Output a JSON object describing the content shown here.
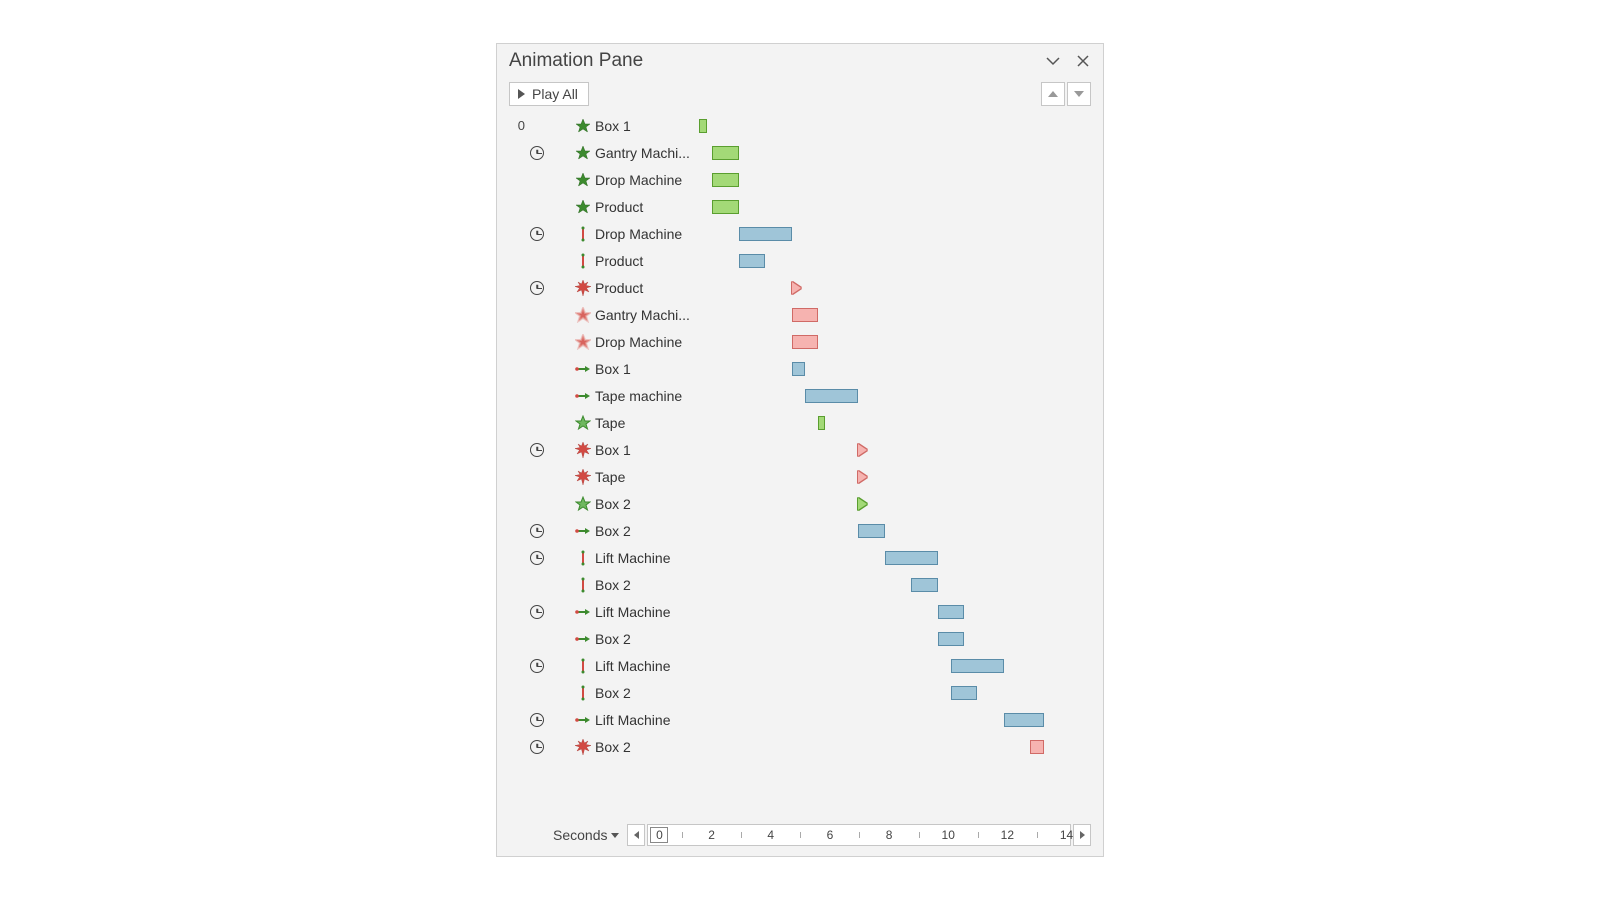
{
  "title": "Animation Pane",
  "playLabel": "Play All",
  "secondsLabel": "Seconds",
  "timeline": {
    "pxPerSecond": 26.5,
    "colors": {
      "green_fill": "#a3d977",
      "green_border": "#5a9e2f",
      "blue_fill": "#9fc5d8",
      "blue_border": "#5a8ca8",
      "red_fill": "#f6b3b0",
      "red_border": "#d06a66"
    },
    "ruler": {
      "start": 0,
      "end": 14,
      "majorStep": 2
    }
  },
  "rows": [
    {
      "num": "0",
      "trigger": "none",
      "indent": 0,
      "icon": "star-green",
      "label": "Box 1",
      "shape": "bar",
      "color": "green",
      "start": 0.0,
      "dur": 0.3
    },
    {
      "num": "",
      "trigger": "clock",
      "indent": 0,
      "icon": "star-green",
      "label": "Gantry Machi...",
      "shape": "bar",
      "color": "green",
      "start": 0.5,
      "dur": 1.0
    },
    {
      "num": "",
      "trigger": "none",
      "indent": 0,
      "icon": "star-green",
      "label": "Drop Machine",
      "shape": "bar",
      "color": "green",
      "start": 0.5,
      "dur": 1.0
    },
    {
      "num": "",
      "trigger": "none",
      "indent": 0,
      "icon": "star-green",
      "label": "Product",
      "shape": "bar",
      "color": "green",
      "start": 0.5,
      "dur": 1.0
    },
    {
      "num": "",
      "trigger": "clock",
      "indent": 0,
      "icon": "line-red",
      "label": "Drop Machine",
      "shape": "bar",
      "color": "blue",
      "start": 1.5,
      "dur": 2.0
    },
    {
      "num": "",
      "trigger": "none",
      "indent": 0,
      "icon": "line-red",
      "label": "Product",
      "shape": "bar",
      "color": "blue",
      "start": 1.5,
      "dur": 1.0
    },
    {
      "num": "",
      "trigger": "clock",
      "indent": 0,
      "icon": "burst-red",
      "label": "Product",
      "shape": "tri",
      "color": "red",
      "start": 3.5,
      "dur": 0
    },
    {
      "num": "",
      "trigger": "none",
      "indent": 0,
      "icon": "star-red-fade",
      "label": "Gantry Machi...",
      "shape": "bar",
      "color": "red",
      "start": 3.5,
      "dur": 1.0
    },
    {
      "num": "",
      "trigger": "none",
      "indent": 0,
      "icon": "star-red-fade",
      "label": "Drop Machine",
      "shape": "bar",
      "color": "red",
      "start": 3.5,
      "dur": 1.0
    },
    {
      "num": "",
      "trigger": "none",
      "indent": 0,
      "icon": "arrow-green",
      "label": "Box 1",
      "shape": "bar",
      "color": "blue",
      "start": 3.5,
      "dur": 0.5
    },
    {
      "num": "",
      "trigger": "none",
      "indent": 0,
      "icon": "arrow-green",
      "label": "Tape machine",
      "shape": "bar",
      "color": "blue",
      "start": 4.0,
      "dur": 2.0
    },
    {
      "num": "",
      "trigger": "none",
      "indent": 0,
      "icon": "star-green-outline",
      "label": "Tape",
      "shape": "bar",
      "color": "green",
      "start": 4.5,
      "dur": 0.25
    },
    {
      "num": "",
      "trigger": "clock",
      "indent": 0,
      "icon": "burst-red",
      "label": "Box 1",
      "shape": "tri",
      "color": "red",
      "start": 6.0,
      "dur": 0
    },
    {
      "num": "",
      "trigger": "none",
      "indent": 0,
      "icon": "burst-red",
      "label": "Tape",
      "shape": "tri",
      "color": "red",
      "start": 6.0,
      "dur": 0
    },
    {
      "num": "",
      "trigger": "none",
      "indent": 0,
      "icon": "star-green-outline",
      "label": "Box 2",
      "shape": "tri",
      "color": "green",
      "start": 6.0,
      "dur": 0
    },
    {
      "num": "",
      "trigger": "clock",
      "indent": 0,
      "icon": "arrow-green",
      "label": "Box 2",
      "shape": "bar",
      "color": "blue",
      "start": 6.0,
      "dur": 1.0
    },
    {
      "num": "",
      "trigger": "clock",
      "indent": 0,
      "icon": "line-red",
      "label": "Lift Machine",
      "shape": "bar",
      "color": "blue",
      "start": 7.0,
      "dur": 2.0
    },
    {
      "num": "",
      "trigger": "none",
      "indent": 0,
      "icon": "line-red",
      "label": "Box 2",
      "shape": "bar",
      "color": "blue",
      "start": 8.0,
      "dur": 1.0
    },
    {
      "num": "",
      "trigger": "clock",
      "indent": 0,
      "icon": "arrow-green",
      "label": "Lift Machine",
      "shape": "bar",
      "color": "blue",
      "start": 9.0,
      "dur": 1.0
    },
    {
      "num": "",
      "trigger": "none",
      "indent": 0,
      "icon": "arrow-green",
      "label": "Box 2",
      "shape": "bar",
      "color": "blue",
      "start": 9.0,
      "dur": 1.0
    },
    {
      "num": "",
      "trigger": "clock",
      "indent": 0,
      "icon": "line-red",
      "label": "Lift Machine",
      "shape": "bar",
      "color": "blue",
      "start": 9.5,
      "dur": 2.0
    },
    {
      "num": "",
      "trigger": "none",
      "indent": 0,
      "icon": "line-red",
      "label": "Box 2",
      "shape": "bar",
      "color": "blue",
      "start": 9.5,
      "dur": 1.0
    },
    {
      "num": "",
      "trigger": "clock",
      "indent": 0,
      "icon": "arrow-green",
      "label": "Lift Machine",
      "shape": "bar",
      "color": "blue",
      "start": 11.5,
      "dur": 1.5
    },
    {
      "num": "",
      "trigger": "clock",
      "indent": 0,
      "icon": "burst-red",
      "label": "Box 2",
      "shape": "bar",
      "color": "red",
      "start": 12.5,
      "dur": 0.5
    }
  ]
}
